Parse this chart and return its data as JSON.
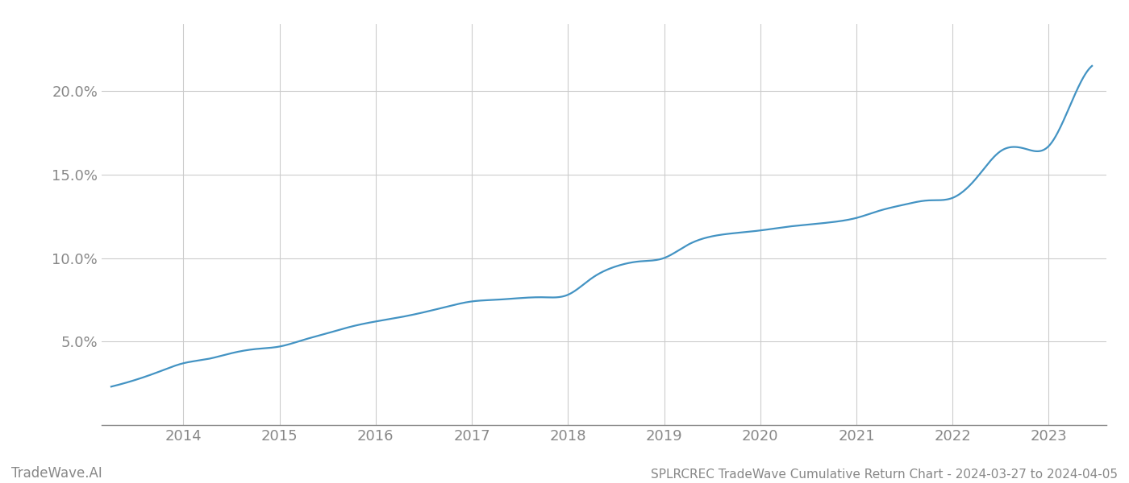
{
  "title": "SPLRCREC TradeWave Cumulative Return Chart - 2024-03-27 to 2024-04-05",
  "watermark": "TradeWave.AI",
  "line_color": "#4393c3",
  "background_color": "#ffffff",
  "grid_color": "#cccccc",
  "axis_color": "#888888",
  "tick_label_color": "#888888",
  "x_years": [
    2014,
    2015,
    2016,
    2017,
    2018,
    2019,
    2020,
    2021,
    2022,
    2023
  ],
  "x_data": [
    2013.25,
    2013.5,
    2013.75,
    2014.0,
    2014.25,
    2014.5,
    2014.75,
    2015.0,
    2015.25,
    2015.5,
    2015.75,
    2016.0,
    2016.25,
    2016.5,
    2016.75,
    2017.0,
    2017.25,
    2017.5,
    2017.75,
    2018.0,
    2018.25,
    2018.5,
    2018.75,
    2019.0,
    2019.25,
    2019.5,
    2019.75,
    2020.0,
    2020.25,
    2020.5,
    2020.75,
    2021.0,
    2021.25,
    2021.5,
    2021.75,
    2022.0,
    2022.25,
    2022.5,
    2022.75,
    2023.0,
    2023.25,
    2023.45
  ],
  "y_data": [
    2.3,
    2.7,
    3.2,
    3.7,
    3.95,
    4.3,
    4.55,
    4.7,
    5.1,
    5.5,
    5.9,
    6.2,
    6.45,
    6.75,
    7.1,
    7.4,
    7.5,
    7.6,
    7.65,
    7.8,
    8.8,
    9.5,
    9.8,
    10.0,
    10.8,
    11.3,
    11.5,
    11.65,
    11.85,
    12.0,
    12.15,
    12.4,
    12.85,
    13.2,
    13.45,
    13.6,
    14.8,
    16.4,
    16.55,
    16.7,
    19.5,
    21.5
  ],
  "ylim": [
    0,
    24
  ],
  "yticks": [
    5.0,
    10.0,
    15.0,
    20.0
  ],
  "xlim": [
    2013.15,
    2023.6
  ],
  "title_fontsize": 11,
  "tick_fontsize": 13,
  "watermark_fontsize": 12,
  "line_width": 1.6
}
